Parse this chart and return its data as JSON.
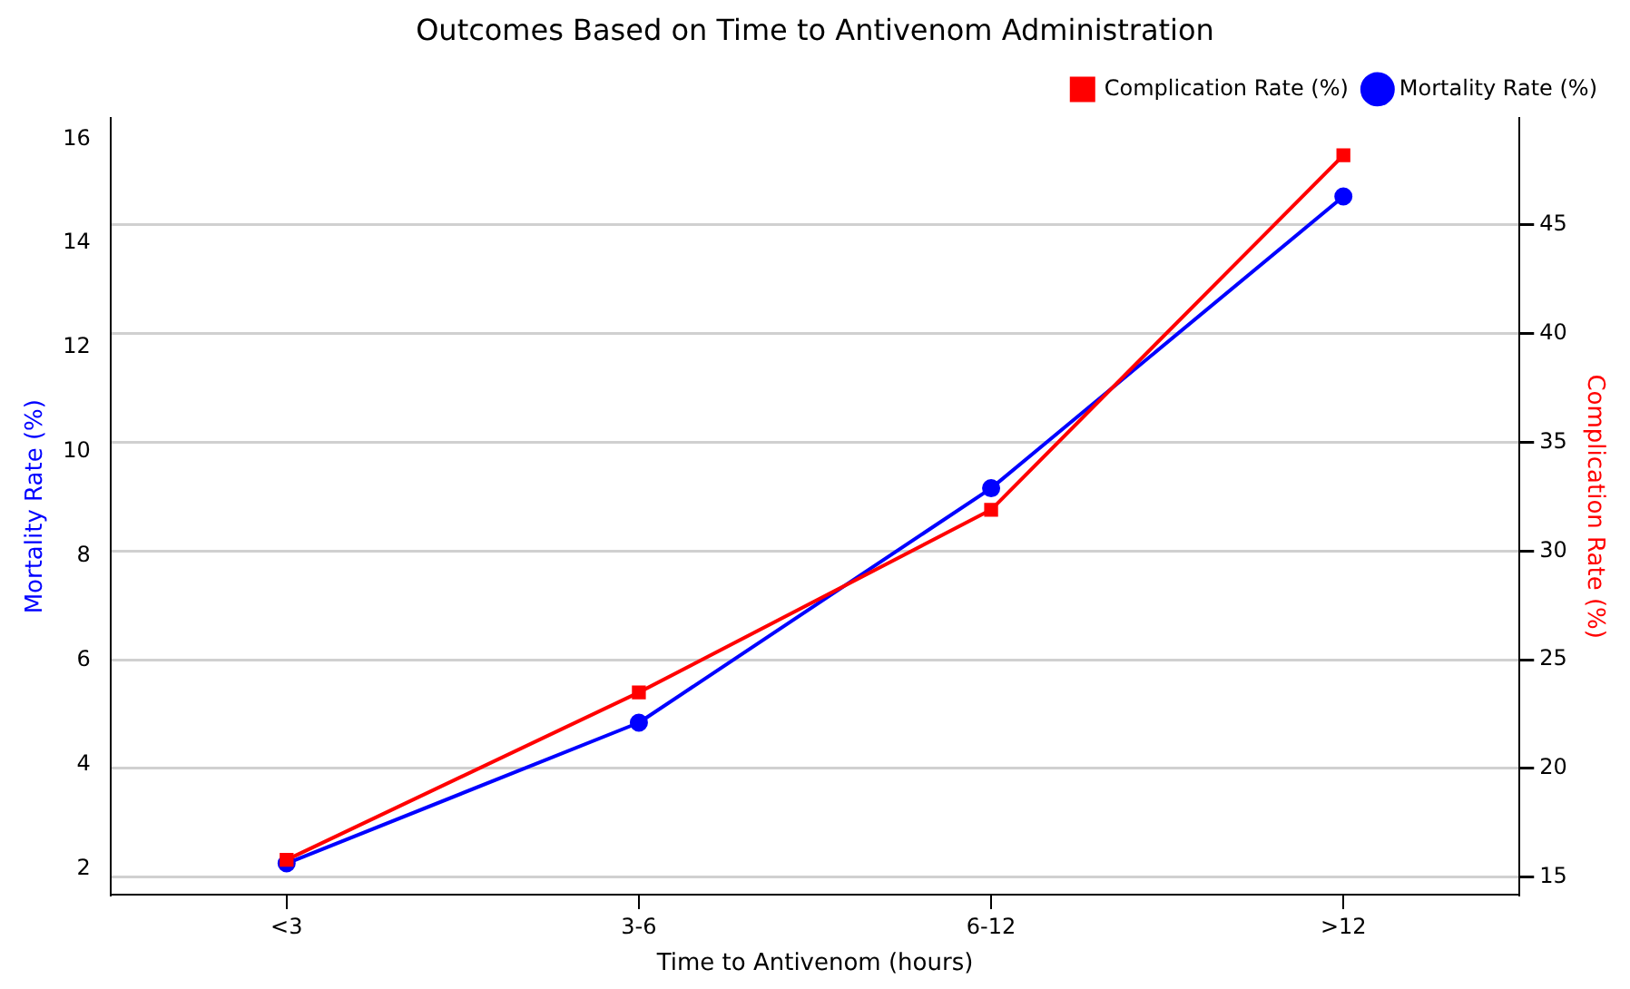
{
  "chart_data": {
    "type": "line",
    "title": "Outcomes Based on Time to Antivenom Administration",
    "xlabel": "Time to Antivenom (hours)",
    "ylabel": "Mortality Rate (%)",
    "y2label": "Complication Rate (%)",
    "categories": [
      "<3",
      "3-6",
      "6-12",
      ">12"
    ],
    "series": [
      {
        "name": "Mortality Rate (%)",
        "color": "#0000ff",
        "values": [
          2.1,
          4.8,
          9.3,
          14.9
        ],
        "marker": "circle"
      },
      {
        "name": "Complication Rate (%)",
        "color": "#ff0000",
        "values": [
          15.8,
          23.5,
          31.9,
          48.2
        ],
        "marker": "square",
        "axis": "y2"
      }
    ],
    "ylim": [
      1.5,
      16.4
    ],
    "yticks": [
      2,
      4,
      6,
      8,
      10,
      12,
      14,
      16
    ],
    "y2lim": [
      14.2,
      49.9
    ],
    "y2ticks": [
      15,
      20,
      25,
      30,
      35,
      40,
      45
    ],
    "grid": "y2",
    "legend": "top right"
  }
}
